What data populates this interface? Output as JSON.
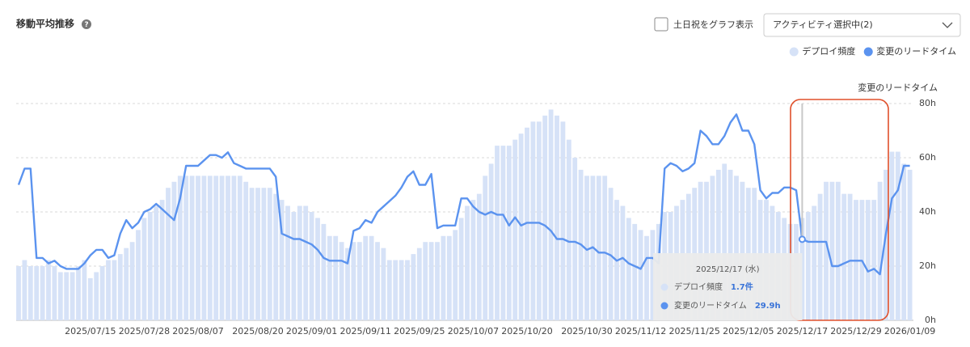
{
  "chart_data": {
    "type": "bar",
    "title": "移動平均推移",
    "checkbox_label": "土日祝をグラフ表示",
    "dropdown_label": "アクティビティ選択中(2)",
    "y_axis_title": "変更のリードタイム",
    "ylim": [
      0,
      80
    ],
    "yticks": [
      {
        "value": 0,
        "label": "0h"
      },
      {
        "value": 20,
        "label": "20h"
      },
      {
        "value": 40,
        "label": "40h"
      },
      {
        "value": 60,
        "label": "60h"
      },
      {
        "value": 80,
        "label": "80h"
      }
    ],
    "y2lim": [
      0,
      3.6
    ],
    "grid": true,
    "legend": "top-right",
    "categories": [
      null,
      null,
      null,
      null,
      null,
      null,
      null,
      null,
      null,
      null,
      null,
      null,
      "2025/07/15",
      null,
      null,
      null,
      null,
      null,
      null,
      null,
      null,
      "2025/07/28",
      null,
      null,
      null,
      null,
      null,
      null,
      null,
      null,
      "2025/08/07",
      null,
      null,
      null,
      null,
      null,
      null,
      null,
      null,
      null,
      "2025/08/20",
      null,
      null,
      null,
      null,
      null,
      null,
      null,
      null,
      "2025/09/01",
      null,
      null,
      null,
      null,
      null,
      null,
      null,
      null,
      "2025/09/11",
      null,
      null,
      null,
      null,
      null,
      null,
      null,
      null,
      "2025/09/25",
      null,
      null,
      null,
      null,
      null,
      null,
      null,
      null,
      "2025/10/07",
      null,
      null,
      null,
      null,
      null,
      null,
      null,
      null,
      "2025/10/20",
      null,
      null,
      null,
      null,
      null,
      null,
      null,
      null,
      null,
      "2025/10/30",
      null,
      null,
      null,
      null,
      null,
      null,
      null,
      null,
      "2025/11/12",
      null,
      null,
      null,
      null,
      null,
      null,
      null,
      null,
      "2025/11/25",
      null,
      null,
      null,
      null,
      null,
      null,
      null,
      null,
      "2025/12/05",
      null,
      null,
      null,
      null,
      null,
      null,
      null,
      null,
      "2025/12/17",
      null,
      null,
      null,
      null,
      null,
      null,
      null,
      null,
      "2025/12/29",
      null,
      null,
      null,
      null,
      null,
      null,
      null,
      null,
      "2026/01/09"
    ],
    "series": [
      {
        "name": "デプロイ頻度",
        "type": "bar",
        "axis": "y2",
        "color": "#d6e2f7",
        "values": [
          0.9,
          1.0,
          0.9,
          0.9,
          0.9,
          1.0,
          0.9,
          0.8,
          0.8,
          0.8,
          0.9,
          1.0,
          0.7,
          0.8,
          0.9,
          1.0,
          1.0,
          1.1,
          1.2,
          1.3,
          1.5,
          1.7,
          1.8,
          1.9,
          2.0,
          2.2,
          2.3,
          2.4,
          2.4,
          2.4,
          2.4,
          2.4,
          2.4,
          2.4,
          2.4,
          2.4,
          2.4,
          2.4,
          2.3,
          2.2,
          2.2,
          2.2,
          2.2,
          2.1,
          2.0,
          1.9,
          1.8,
          1.9,
          1.9,
          1.8,
          1.7,
          1.6,
          1.4,
          1.4,
          1.3,
          1.2,
          1.3,
          1.3,
          1.4,
          1.4,
          1.3,
          1.2,
          1.0,
          1.0,
          1.0,
          1.0,
          1.1,
          1.2,
          1.3,
          1.3,
          1.3,
          1.4,
          1.4,
          1.5,
          1.7,
          1.9,
          2.0,
          2.1,
          2.4,
          2.6,
          2.9,
          2.9,
          2.9,
          3.0,
          3.1,
          3.2,
          3.3,
          3.3,
          3.4,
          3.5,
          3.4,
          3.3,
          3.0,
          2.7,
          2.5,
          2.4,
          2.4,
          2.4,
          2.4,
          2.2,
          2.0,
          1.9,
          1.7,
          1.6,
          1.5,
          1.4,
          1.5,
          1.6,
          1.8,
          1.8,
          1.9,
          2.0,
          2.1,
          2.2,
          2.3,
          2.3,
          2.4,
          2.5,
          2.6,
          2.5,
          2.4,
          2.3,
          2.2,
          2.2,
          2.0,
          2.0,
          1.9,
          1.8,
          1.7,
          1.6,
          1.6,
          1.7,
          1.8,
          1.9,
          2.1,
          2.3,
          2.3,
          2.3,
          2.1,
          2.1,
          2.0,
          2.0,
          2.0,
          2.0,
          2.3,
          2.5,
          2.8,
          2.8,
          2.6,
          2.5
        ]
      },
      {
        "name": "変更のリードタイム",
        "type": "line",
        "color": "#5b93ef",
        "values": [
          50,
          56,
          56,
          23,
          23,
          21,
          22,
          20,
          19,
          19,
          19,
          21,
          24,
          26,
          26,
          23,
          24,
          32,
          37,
          34,
          36,
          40,
          41,
          43,
          41,
          39,
          37,
          45,
          57,
          57,
          57,
          59,
          61,
          61,
          60,
          62,
          58,
          57,
          56,
          56,
          56,
          56,
          56,
          53,
          32,
          31,
          30,
          30,
          29,
          28,
          26,
          23,
          22,
          22,
          22,
          21,
          33,
          34,
          37,
          36,
          40,
          42,
          44,
          46,
          49,
          53,
          55,
          50,
          50,
          54,
          34,
          35,
          35,
          35,
          45,
          45,
          42,
          40,
          39,
          40,
          39,
          39,
          35,
          38,
          35,
          36,
          36,
          36,
          35,
          33,
          30,
          30,
          29,
          29,
          28,
          26,
          27,
          25,
          25,
          24,
          22,
          23,
          21,
          20,
          19,
          23,
          23,
          21,
          56,
          58,
          57,
          55,
          56,
          58,
          70,
          68,
          65,
          65,
          68,
          73,
          76,
          70,
          70,
          65,
          48,
          45,
          47,
          47,
          49,
          49,
          48,
          29.9,
          29,
          29,
          29,
          29,
          20,
          20,
          21,
          22,
          22,
          22,
          18,
          19,
          17,
          32,
          45,
          48,
          57,
          57
        ]
      }
    ],
    "tooltip": {
      "title": "2025/12/17 (水)",
      "value_labels": [
        "1.7件",
        "29.9h"
      ]
    }
  }
}
